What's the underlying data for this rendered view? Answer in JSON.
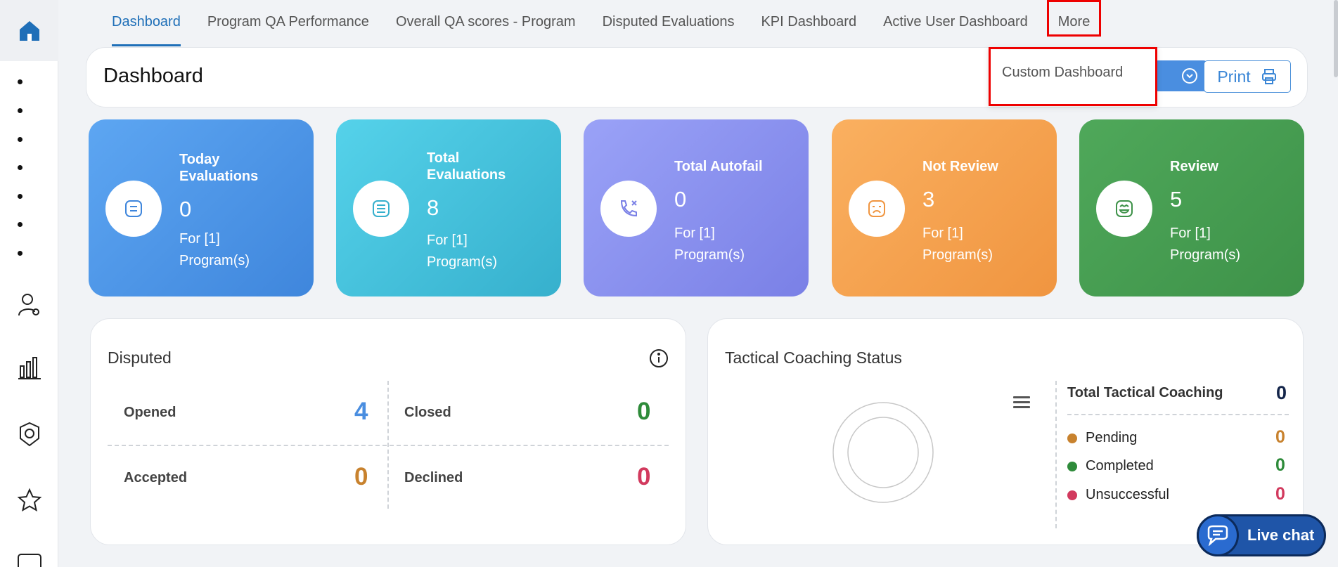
{
  "tabs": [
    {
      "label": "Dashboard",
      "active": true
    },
    {
      "label": "Program QA Performance"
    },
    {
      "label": "Overall QA scores - Program"
    },
    {
      "label": "Disputed Evaluations"
    },
    {
      "label": "KPI Dashboard"
    },
    {
      "label": "Active User Dashboard"
    },
    {
      "label": "More"
    }
  ],
  "header": {
    "title": "Dashboard",
    "print_label": "Print"
  },
  "dropdown": {
    "items": [
      "Custom Dashboard"
    ]
  },
  "cards": [
    {
      "label": "Today Evaluations",
      "value": "0",
      "sub": "For [1] Program(s)",
      "icon": "note-icon"
    },
    {
      "label": "Total Evaluations",
      "value": "8",
      "sub": "For [1] Program(s)",
      "icon": "list-icon"
    },
    {
      "label": "Total Autofail",
      "value": "0",
      "sub": "For [1] Program(s)",
      "icon": "call-missed-icon"
    },
    {
      "label": "Not Review",
      "value": "3",
      "sub": "For [1] Program(s)",
      "icon": "sad-face-icon"
    },
    {
      "label": "Review",
      "value": "5",
      "sub": "For [1] Program(s)",
      "icon": "happy-face-icon"
    }
  ],
  "disputed": {
    "title": "Disputed",
    "opened_label": "Opened",
    "opened_value": "4",
    "closed_label": "Closed",
    "closed_value": "0",
    "accepted_label": "Accepted",
    "accepted_value": "0",
    "declined_label": "Declined",
    "declined_value": "0"
  },
  "coaching": {
    "title": "Tactical Coaching Status",
    "total_label": "Total Tactical Coaching",
    "total_value": "0",
    "legend": [
      {
        "label": "Pending",
        "value": "0",
        "color": "#c8822e"
      },
      {
        "label": "Completed",
        "value": "0",
        "color": "#2e8b3a"
      },
      {
        "label": "Unsuccessful",
        "value": "0",
        "color": "#d23a5e"
      }
    ]
  },
  "live_chat": {
    "label": "Live chat"
  },
  "colors": {
    "accent": "#1f6fb8",
    "blue_value": "#4a8ee0",
    "orange_value": "#c8822e",
    "green_value": "#2e8b3a",
    "red_value": "#d23a5e"
  }
}
